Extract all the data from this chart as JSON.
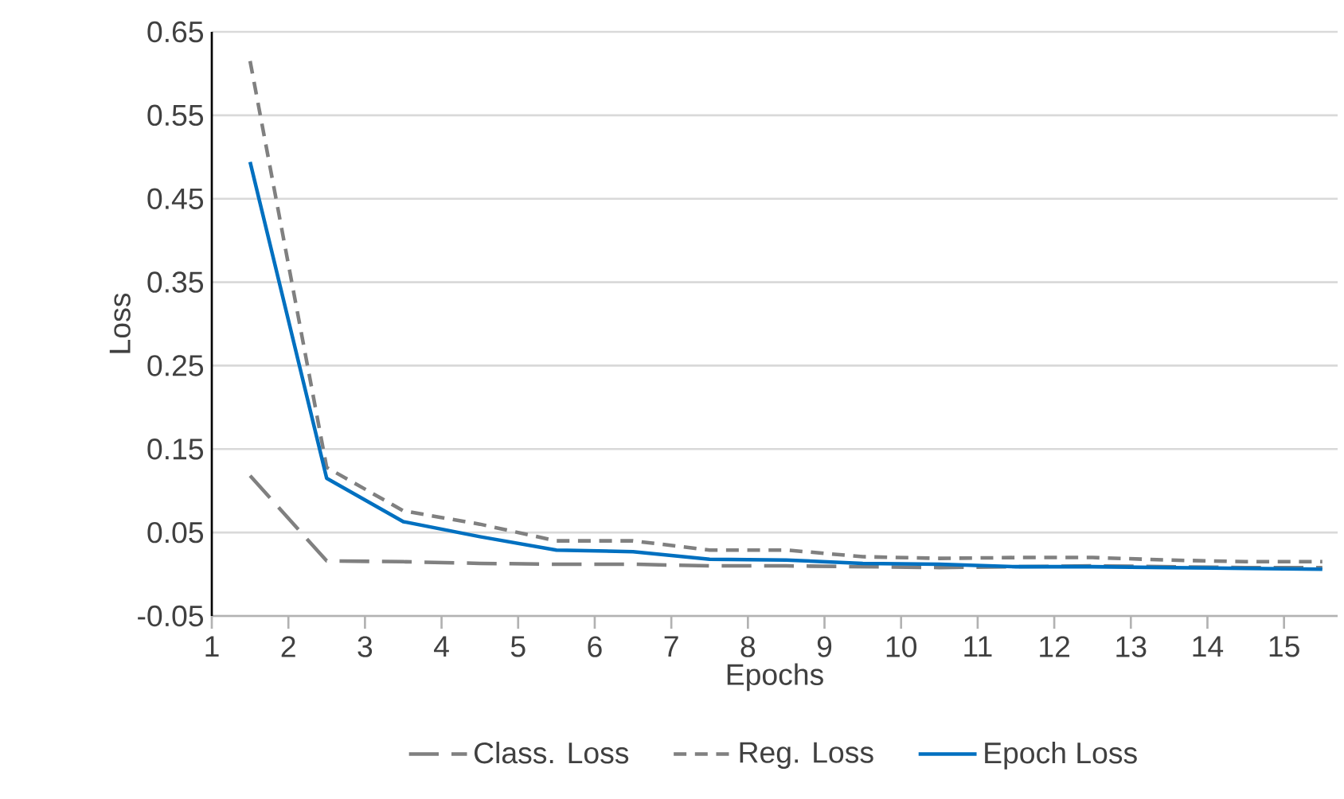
{
  "chart_data": {
    "type": "line",
    "xlabel": "Epochs",
    "ylabel": "Loss",
    "x": [
      1.5,
      2.5,
      3.5,
      4.5,
      5.5,
      6.5,
      7.5,
      8.5,
      9.5,
      10.5,
      11.5,
      12.5,
      13.5,
      14.5,
      15.5
    ],
    "series": [
      {
        "name": "Class. Loss",
        "color": "#808080",
        "line_style": "dashed",
        "values": [
          0.118,
          0.016,
          0.015,
          0.013,
          0.012,
          0.012,
          0.01,
          0.01,
          0.009,
          0.008,
          0.009,
          0.01,
          0.009,
          0.008,
          0.008
        ]
      },
      {
        "name": "Reg. Loss",
        "color": "#808080",
        "line_style": "dotted",
        "values": [
          0.615,
          0.128,
          0.076,
          0.06,
          0.04,
          0.04,
          0.029,
          0.029,
          0.021,
          0.019,
          0.02,
          0.02,
          0.017,
          0.015,
          0.015
        ]
      },
      {
        "name": "Epoch Loss",
        "color": "#0070c0",
        "line_style": "solid",
        "values": [
          0.494,
          0.115,
          0.063,
          0.045,
          0.029,
          0.027,
          0.018,
          0.017,
          0.013,
          0.012,
          0.009,
          0.009,
          0.008,
          0.007,
          0.006
        ]
      }
    ],
    "xlim": [
      1,
      15.7
    ],
    "xticks": [
      1,
      2,
      3,
      4,
      5,
      6,
      7,
      8,
      9,
      10,
      11,
      12,
      13,
      14,
      15
    ],
    "ylim": [
      -0.05,
      0.65
    ],
    "yticks": [
      -0.05,
      0.05,
      0.15,
      0.25,
      0.35,
      0.45,
      0.55,
      0.65
    ],
    "grid": "y",
    "legend": "bottom",
    "marker": "none"
  }
}
